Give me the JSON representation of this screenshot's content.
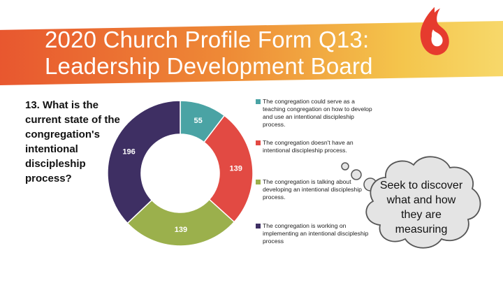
{
  "slide": {
    "title_line1": "2020 Church Profile Form Q13:",
    "title_line2": "Leadership Development Board",
    "question": "13. What is the current state of the congregation's intentional discipleship process?",
    "thought_bubble": "Seek to discover what and how they are measuring"
  },
  "colors": {
    "banner_start": "#e8572f",
    "banner_end": "#f7d86a",
    "logo": "#e63b2e"
  },
  "chart_data": {
    "type": "pie",
    "donut": true,
    "title": "",
    "series": [
      {
        "name": "Responses",
        "categories": [
          "The congregation could serve as a teaching congregation on how to develop and use an intentional discipleship process.",
          "The congregation doesn't have an intentional discipleship process.",
          "The congregation is talking about developing an intentional discipleship process.",
          "The congregation is working on implementing an intentional discipleship process"
        ],
        "values": [
          55,
          139,
          139,
          196
        ],
        "labels": [
          "55",
          "139",
          "139",
          "196"
        ],
        "colors": [
          "#4aa3a4",
          "#e24a43",
          "#9bb04c",
          "#3e2f63"
        ]
      }
    ],
    "legend_position": "right",
    "start_angle_deg": 0,
    "direction": "clockwise"
  }
}
